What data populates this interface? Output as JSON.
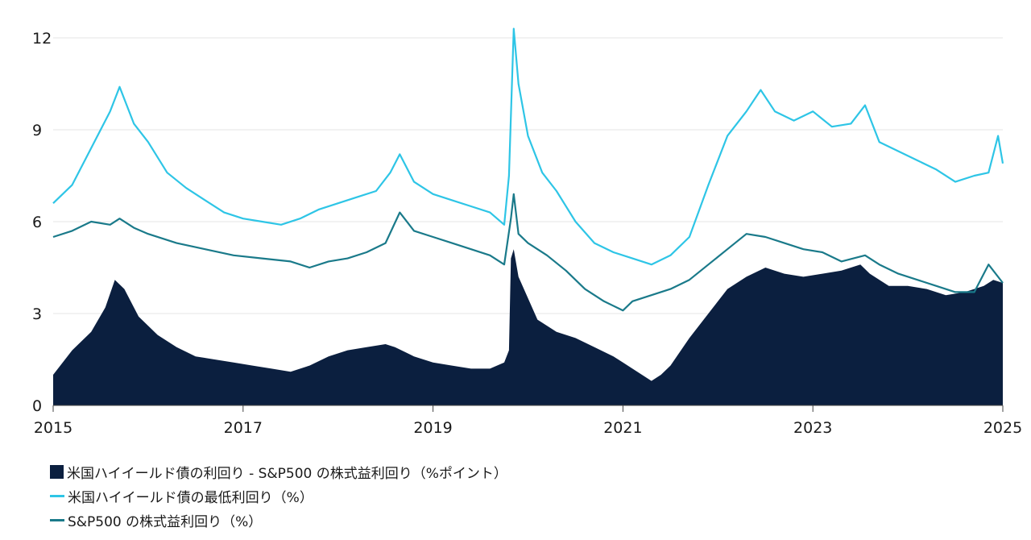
{
  "colors": {
    "spread": "#0b1f3f",
    "hy_yield": "#2ec5e6",
    "sp_yield": "#1a7a8a",
    "grid": "#e6e6e6",
    "text": "#1a1a1a"
  },
  "chart_data": {
    "type": "area",
    "title": "",
    "xlabel": "",
    "ylabel": "",
    "xlim": [
      2015,
      2025
    ],
    "ylim": [
      0,
      12.5
    ],
    "x_ticks": [
      "2015",
      "2017",
      "2019",
      "2021",
      "2023",
      "2025"
    ],
    "y_ticks": [
      "0",
      "3",
      "6",
      "9",
      "12"
    ],
    "grid": "horizontal",
    "legend_position": "bottom-left",
    "series": [
      {
        "name": "米国ハイイールド債の利回り - S&P500 の株式益利回り（%ポイント）",
        "type": "area",
        "color": "#0b1f3f",
        "points": [
          [
            2015.0,
            1.0
          ],
          [
            2015.2,
            1.8
          ],
          [
            2015.4,
            2.4
          ],
          [
            2015.55,
            3.2
          ],
          [
            2015.65,
            4.1
          ],
          [
            2015.75,
            3.8
          ],
          [
            2015.9,
            2.9
          ],
          [
            2016.1,
            2.3
          ],
          [
            2016.3,
            1.9
          ],
          [
            2016.5,
            1.6
          ],
          [
            2016.7,
            1.5
          ],
          [
            2016.9,
            1.4
          ],
          [
            2017.1,
            1.3
          ],
          [
            2017.3,
            1.2
          ],
          [
            2017.5,
            1.1
          ],
          [
            2017.7,
            1.3
          ],
          [
            2017.9,
            1.6
          ],
          [
            2018.1,
            1.8
          ],
          [
            2018.3,
            1.9
          ],
          [
            2018.5,
            2.0
          ],
          [
            2018.6,
            1.9
          ],
          [
            2018.8,
            1.6
          ],
          [
            2019.0,
            1.4
          ],
          [
            2019.2,
            1.3
          ],
          [
            2019.4,
            1.2
          ],
          [
            2019.6,
            1.2
          ],
          [
            2019.75,
            1.4
          ],
          [
            2019.8,
            1.8
          ],
          [
            2019.82,
            4.8
          ],
          [
            2019.85,
            5.1
          ],
          [
            2019.9,
            4.2
          ],
          [
            2020.0,
            3.5
          ],
          [
            2020.1,
            2.8
          ],
          [
            2020.3,
            2.4
          ],
          [
            2020.5,
            2.2
          ],
          [
            2020.7,
            1.9
          ],
          [
            2020.9,
            1.6
          ],
          [
            2021.0,
            1.4
          ],
          [
            2021.1,
            1.2
          ],
          [
            2021.2,
            1.0
          ],
          [
            2021.3,
            0.8
          ],
          [
            2021.4,
            1.0
          ],
          [
            2021.5,
            1.3
          ],
          [
            2021.7,
            2.2
          ],
          [
            2021.9,
            3.0
          ],
          [
            2022.1,
            3.8
          ],
          [
            2022.3,
            4.2
          ],
          [
            2022.5,
            4.5
          ],
          [
            2022.7,
            4.3
          ],
          [
            2022.9,
            4.2
          ],
          [
            2023.1,
            4.3
          ],
          [
            2023.3,
            4.4
          ],
          [
            2023.5,
            4.6
          ],
          [
            2023.6,
            4.3
          ],
          [
            2023.8,
            3.9
          ],
          [
            2024.0,
            3.9
          ],
          [
            2024.2,
            3.8
          ],
          [
            2024.4,
            3.6
          ],
          [
            2024.6,
            3.7
          ],
          [
            2024.8,
            3.9
          ],
          [
            2024.9,
            4.1
          ],
          [
            2025.0,
            4.0
          ]
        ]
      },
      {
        "name": "米国ハイイールド債の最低利回り（%）",
        "type": "line",
        "color": "#2ec5e6",
        "points": [
          [
            2015.0,
            6.6
          ],
          [
            2015.2,
            7.2
          ],
          [
            2015.4,
            8.4
          ],
          [
            2015.6,
            9.6
          ],
          [
            2015.7,
            10.4
          ],
          [
            2015.85,
            9.2
          ],
          [
            2016.0,
            8.6
          ],
          [
            2016.2,
            7.6
          ],
          [
            2016.4,
            7.1
          ],
          [
            2016.6,
            6.7
          ],
          [
            2016.8,
            6.3
          ],
          [
            2017.0,
            6.1
          ],
          [
            2017.2,
            6.0
          ],
          [
            2017.4,
            5.9
          ],
          [
            2017.6,
            6.1
          ],
          [
            2017.8,
            6.4
          ],
          [
            2018.0,
            6.6
          ],
          [
            2018.2,
            6.8
          ],
          [
            2018.4,
            7.0
          ],
          [
            2018.55,
            7.6
          ],
          [
            2018.65,
            8.2
          ],
          [
            2018.8,
            7.3
          ],
          [
            2019.0,
            6.9
          ],
          [
            2019.2,
            6.7
          ],
          [
            2019.4,
            6.5
          ],
          [
            2019.6,
            6.3
          ],
          [
            2019.75,
            5.9
          ],
          [
            2019.8,
            7.5
          ],
          [
            2019.85,
            12.3
          ],
          [
            2019.9,
            10.5
          ],
          [
            2020.0,
            8.8
          ],
          [
            2020.15,
            7.6
          ],
          [
            2020.3,
            7.0
          ],
          [
            2020.5,
            6.0
          ],
          [
            2020.7,
            5.3
          ],
          [
            2020.9,
            5.0
          ],
          [
            2021.1,
            4.8
          ],
          [
            2021.3,
            4.6
          ],
          [
            2021.5,
            4.9
          ],
          [
            2021.7,
            5.5
          ],
          [
            2021.9,
            7.2
          ],
          [
            2022.1,
            8.8
          ],
          [
            2022.3,
            9.6
          ],
          [
            2022.45,
            10.3
          ],
          [
            2022.6,
            9.6
          ],
          [
            2022.8,
            9.3
          ],
          [
            2023.0,
            9.6
          ],
          [
            2023.2,
            9.1
          ],
          [
            2023.4,
            9.2
          ],
          [
            2023.55,
            9.8
          ],
          [
            2023.7,
            8.6
          ],
          [
            2023.9,
            8.3
          ],
          [
            2024.1,
            8.0
          ],
          [
            2024.3,
            7.7
          ],
          [
            2024.5,
            7.3
          ],
          [
            2024.7,
            7.5
          ],
          [
            2024.85,
            7.6
          ],
          [
            2024.95,
            8.8
          ],
          [
            2025.0,
            7.9
          ]
        ]
      },
      {
        "name": "S&P500 の株式益利回り（%）",
        "type": "line",
        "color": "#1a7a8a",
        "points": [
          [
            2015.0,
            5.5
          ],
          [
            2015.2,
            5.7
          ],
          [
            2015.4,
            6.0
          ],
          [
            2015.6,
            5.9
          ],
          [
            2015.7,
            6.1
          ],
          [
            2015.85,
            5.8
          ],
          [
            2016.0,
            5.6
          ],
          [
            2016.3,
            5.3
          ],
          [
            2016.6,
            5.1
          ],
          [
            2016.9,
            4.9
          ],
          [
            2017.2,
            4.8
          ],
          [
            2017.5,
            4.7
          ],
          [
            2017.7,
            4.5
          ],
          [
            2017.9,
            4.7
          ],
          [
            2018.1,
            4.8
          ],
          [
            2018.3,
            5.0
          ],
          [
            2018.5,
            5.3
          ],
          [
            2018.65,
            6.3
          ],
          [
            2018.8,
            5.7
          ],
          [
            2019.0,
            5.5
          ],
          [
            2019.2,
            5.3
          ],
          [
            2019.4,
            5.1
          ],
          [
            2019.6,
            4.9
          ],
          [
            2019.75,
            4.6
          ],
          [
            2019.82,
            6.1
          ],
          [
            2019.85,
            6.9
          ],
          [
            2019.9,
            5.6
          ],
          [
            2020.0,
            5.3
          ],
          [
            2020.2,
            4.9
          ],
          [
            2020.4,
            4.4
          ],
          [
            2020.6,
            3.8
          ],
          [
            2020.8,
            3.4
          ],
          [
            2021.0,
            3.1
          ],
          [
            2021.1,
            3.4
          ],
          [
            2021.3,
            3.6
          ],
          [
            2021.5,
            3.8
          ],
          [
            2021.7,
            4.1
          ],
          [
            2021.9,
            4.6
          ],
          [
            2022.1,
            5.1
          ],
          [
            2022.3,
            5.6
          ],
          [
            2022.5,
            5.5
          ],
          [
            2022.7,
            5.3
          ],
          [
            2022.9,
            5.1
          ],
          [
            2023.1,
            5.0
          ],
          [
            2023.3,
            4.7
          ],
          [
            2023.55,
            4.9
          ],
          [
            2023.7,
            4.6
          ],
          [
            2023.9,
            4.3
          ],
          [
            2024.1,
            4.1
          ],
          [
            2024.3,
            3.9
          ],
          [
            2024.5,
            3.7
          ],
          [
            2024.7,
            3.7
          ],
          [
            2024.85,
            4.6
          ],
          [
            2025.0,
            4.0
          ]
        ]
      }
    ]
  }
}
